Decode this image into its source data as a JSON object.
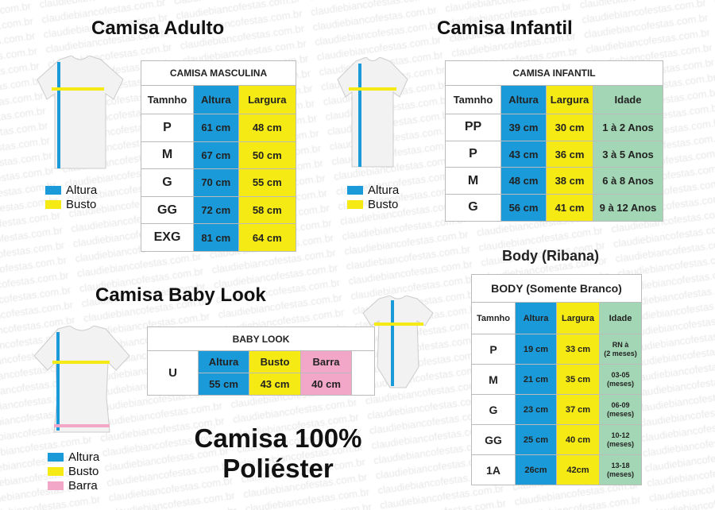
{
  "watermark": "claudiebiancofestas.com.br",
  "colors": {
    "altura": "#1a9ad9",
    "busto": "#f5ea14",
    "barra": "#f2a6c8",
    "idade": "#a3d6b4"
  },
  "adulto": {
    "title": "Camisa Adulto",
    "table_title": "CAMISA MASCULINA",
    "headers": [
      "Tamnho",
      "Altura",
      "Largura"
    ],
    "rows": [
      [
        "P",
        "61 cm",
        "48 cm"
      ],
      [
        "M",
        "67 cm",
        "50 cm"
      ],
      [
        "G",
        "70 cm",
        "55 cm"
      ],
      [
        "GG",
        "72 cm",
        "58 cm"
      ],
      [
        "EXG",
        "81 cm",
        "64 cm"
      ]
    ],
    "legend": [
      "Altura",
      "Busto"
    ]
  },
  "infantil": {
    "title": "Camisa Infantil",
    "table_title": "CAMISA INFANTIL",
    "headers": [
      "Tamnho",
      "Altura",
      "Largura",
      "Idade"
    ],
    "rows": [
      [
        "PP",
        "39 cm",
        "30 cm",
        "1 à 2 Anos"
      ],
      [
        "P",
        "43 cm",
        "36 cm",
        "3 à 5 Anos"
      ],
      [
        "M",
        "48 cm",
        "38 cm",
        "6 à 8 Anos"
      ],
      [
        "G",
        "56 cm",
        "41 cm",
        "9 à 12 Anos"
      ]
    ],
    "legend": [
      "Altura",
      "Busto"
    ]
  },
  "body": {
    "title": "Body (Ribana)",
    "table_title": "BODY (Somente Branco)",
    "headers": [
      "Tamnho",
      "Altura",
      "Largura",
      "Idade"
    ],
    "rows": [
      [
        "P",
        "19 cm",
        "33 cm",
        "RN à",
        "(2 meses)"
      ],
      [
        "M",
        "21 cm",
        "35 cm",
        "03-05",
        "(meses)"
      ],
      [
        "G",
        "23 cm",
        "37 cm",
        "06-09",
        "(meses)"
      ],
      [
        "GG",
        "25 cm",
        "40 cm",
        "10-12",
        "(meses)"
      ],
      [
        "1A",
        "26cm",
        "42cm",
        "13-18",
        "(meses)"
      ]
    ]
  },
  "babylook": {
    "title": "Camisa Baby Look",
    "table_title": "BABY LOOK",
    "headers": [
      "Altura",
      "Busto",
      "Barra"
    ],
    "row": [
      "U",
      "55 cm",
      "43 cm",
      "40 cm"
    ],
    "legend": [
      "Altura",
      "Busto",
      "Barra"
    ]
  },
  "footer": {
    "line1": "Camisa 100%",
    "line2": "Poliéster"
  }
}
